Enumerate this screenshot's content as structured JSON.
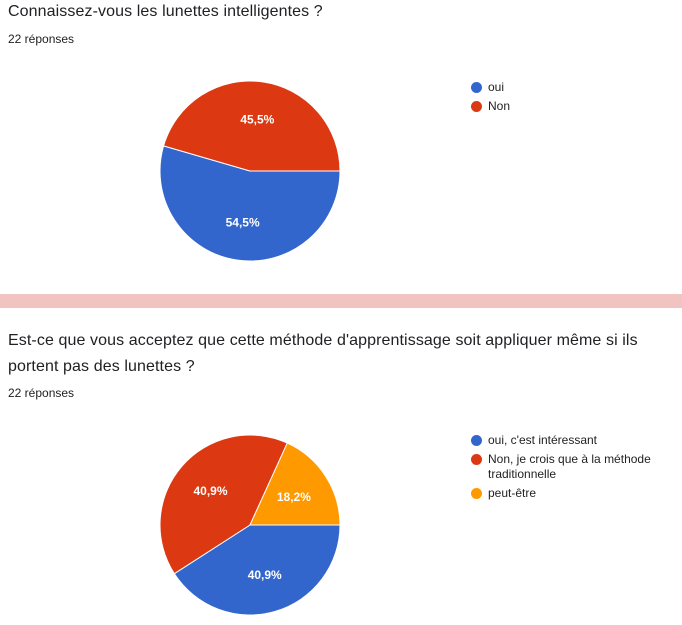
{
  "colors": {
    "blue": "#3366cc",
    "red": "#dc3912",
    "orange": "#ff9900"
  },
  "charts": [
    {
      "question": "Connaissez-vous les lunettes intelligentes ?",
      "responses": "22 réponses"
    },
    {
      "question": "Est-ce que vous acceptez que cette méthode d'apprentissage soit appliquer même si ils portent pas des lunettes ?",
      "responses": "22 réponses"
    }
  ],
  "chart_data": [
    {
      "type": "pie",
      "title": "Connaissez-vous les lunettes intelligentes ?",
      "legend_position": "right",
      "categories": [
        "oui",
        "Non"
      ],
      "values": [
        54.5,
        45.5
      ],
      "labels": [
        "54,5%",
        "45,5%"
      ],
      "colors": [
        "#3366cc",
        "#dc3912"
      ]
    },
    {
      "type": "pie",
      "title": "Est-ce que vous acceptez que cette méthode d'apprentissage soit appliquer même si ils portent pas des lunettes ?",
      "legend_position": "right",
      "categories": [
        "oui, c'est intéressant",
        "Non, je crois que à la méthode traditionnelle",
        "peut-être"
      ],
      "values": [
        40.9,
        40.9,
        18.2
      ],
      "labels": [
        "40,9%",
        "40,9%",
        "18,2%"
      ],
      "colors": [
        "#3366cc",
        "#dc3912",
        "#ff9900"
      ]
    }
  ]
}
